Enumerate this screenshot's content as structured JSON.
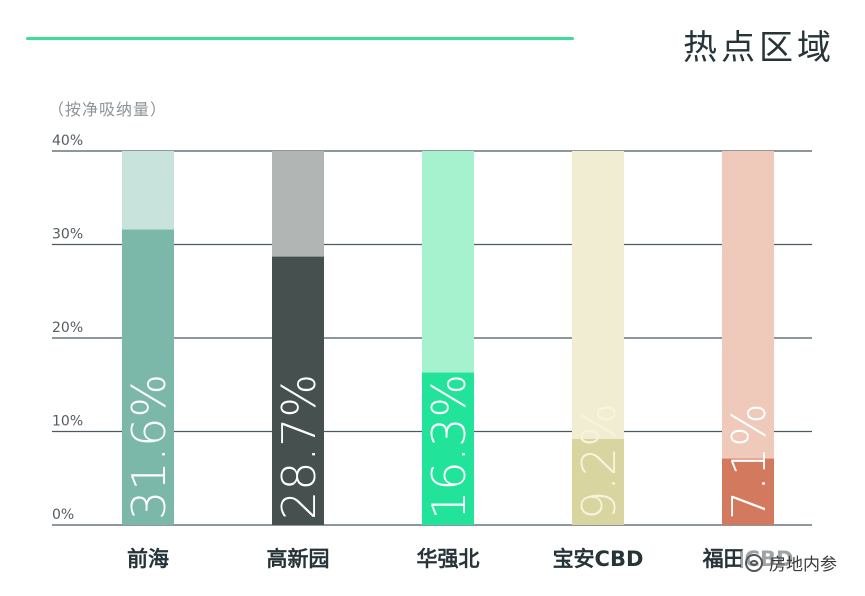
{
  "header": {
    "title": "热点区域",
    "subtitle": "（按净吸纳量）",
    "accent_color": "#3ddc97"
  },
  "watermark": {
    "icon": "wechat-icon",
    "text": "房地内参"
  },
  "chart_data": {
    "type": "bar",
    "title": "热点区域",
    "subtitle": "（按净吸纳量）",
    "categories": [
      "前海",
      "高新园",
      "华强北",
      "宝安CBD",
      "福田CBD"
    ],
    "values": [
      31.6,
      28.7,
      16.3,
      9.2,
      7.1
    ],
    "value_labels": [
      "31.6%",
      "28.7%",
      "16.3%",
      "9.2%",
      "7.1%"
    ],
    "ylim": [
      0,
      40
    ],
    "y_ticks": [
      0,
      10,
      20,
      30,
      40
    ],
    "y_tick_labels": [
      "0%",
      "10%",
      "20%",
      "30%",
      "40%"
    ],
    "grid": true,
    "bar_colors": [
      "#7cb8aa",
      "#46514f",
      "#22e39a",
      "#d8d5a0",
      "#d2795e"
    ],
    "track_colors": [
      "#c8e2dc",
      "#b1b5b4",
      "#a6f2cf",
      "#f0edd3",
      "#efc9ba"
    ],
    "label_colors": [
      "#ffffff",
      "#ffffff",
      "#ffffff",
      "#f7f4dc",
      "#ffffff"
    ]
  }
}
